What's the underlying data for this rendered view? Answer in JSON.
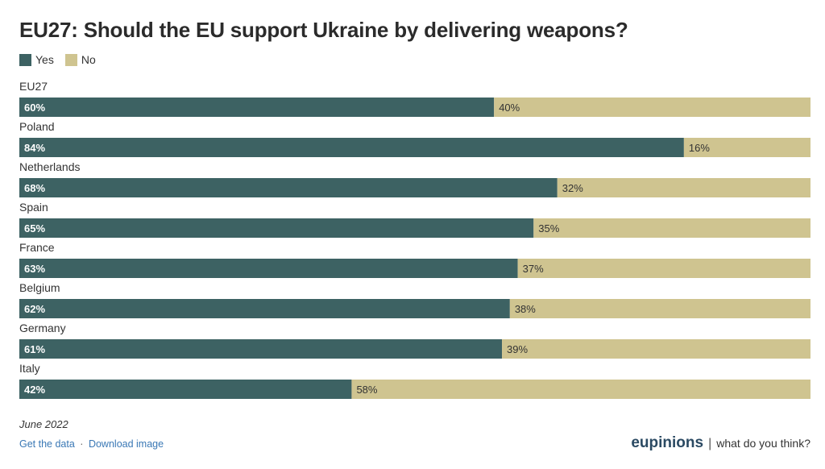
{
  "chart_data": {
    "type": "bar",
    "orientation": "horizontal",
    "stacked": true,
    "title": "EU27: Should the EU support Ukraine by delivering weapons?",
    "categories": [
      "EU27",
      "Poland",
      "Netherlands",
      "Spain",
      "France",
      "Belgium",
      "Germany",
      "Italy"
    ],
    "series": [
      {
        "name": "Yes",
        "color": "#3d6263",
        "values": [
          60,
          84,
          68,
          65,
          63,
          62,
          61,
          42
        ],
        "labels": [
          "60%",
          "84%",
          "68%",
          "65%",
          "63%",
          "62%",
          "61%",
          "42%"
        ]
      },
      {
        "name": "No",
        "color": "#cfc490",
        "values": [
          40,
          16,
          32,
          35,
          37,
          38,
          39,
          58
        ],
        "labels": [
          "40%",
          "16%",
          "32%",
          "35%",
          "37%",
          "38%",
          "39%",
          "58%"
        ]
      }
    ],
    "xlim": [
      0,
      100
    ],
    "legend_position": "top-left",
    "grid": false
  },
  "footer": {
    "date": "June 2022",
    "link_data": "Get the data",
    "separator": "·",
    "link_download": "Download image"
  },
  "brand": {
    "name": "eupinions",
    "divider": "|",
    "tagline": "what do you think?"
  }
}
